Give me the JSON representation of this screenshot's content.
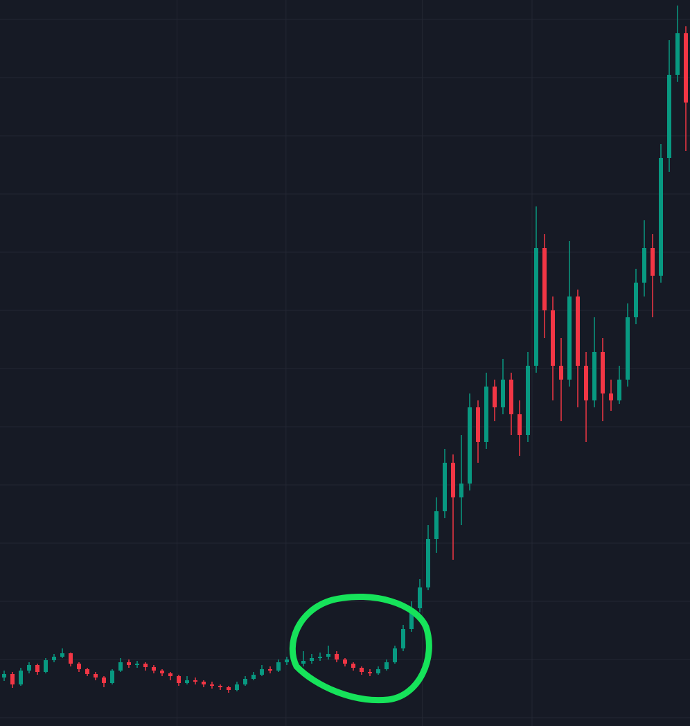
{
  "chart_data": {
    "type": "candlestick",
    "open": [
      70,
      75,
      60,
      80,
      88,
      78,
      95,
      100,
      105,
      90,
      82,
      75,
      70,
      62,
      80,
      92,
      88,
      90,
      85,
      80,
      76,
      72,
      62,
      66,
      64,
      60,
      58,
      56,
      52,
      60,
      68,
      74,
      82,
      80,
      92,
      96,
      90,
      94,
      98,
      100,
      104,
      96,
      90,
      84,
      78,
      76,
      82,
      92,
      112,
      140,
      170,
      200,
      270,
      310,
      380,
      330,
      350,
      460,
      410,
      490,
      460,
      500,
      450,
      420,
      520,
      690,
      600,
      520,
      500,
      620,
      520,
      470,
      540,
      480,
      470,
      500,
      590,
      640,
      690,
      650,
      820,
      940,
      1000
    ],
    "high": [
      80,
      78,
      84,
      92,
      90,
      98,
      104,
      112,
      106,
      92,
      84,
      78,
      72,
      82,
      98,
      96,
      94,
      92,
      88,
      82,
      78,
      74,
      72,
      70,
      66,
      64,
      60,
      58,
      64,
      72,
      78,
      88,
      86,
      96,
      100,
      98,
      108,
      104,
      106,
      116,
      108,
      98,
      92,
      86,
      82,
      86,
      96,
      116,
      146,
      180,
      212,
      290,
      330,
      400,
      392,
      420,
      480,
      470,
      510,
      500,
      530,
      510,
      470,
      540,
      750,
      710,
      620,
      560,
      700,
      630,
      540,
      590,
      560,
      500,
      520,
      610,
      660,
      730,
      710,
      840,
      990,
      1040,
      1010
    ],
    "low": [
      65,
      55,
      58,
      76,
      74,
      76,
      92,
      98,
      86,
      78,
      72,
      66,
      56,
      60,
      78,
      84,
      84,
      80,
      76,
      72,
      66,
      58,
      60,
      60,
      56,
      54,
      52,
      48,
      50,
      58,
      66,
      72,
      76,
      78,
      88,
      84,
      86,
      90,
      94,
      96,
      92,
      86,
      80,
      74,
      72,
      74,
      80,
      90,
      108,
      136,
      164,
      196,
      250,
      300,
      240,
      290,
      340,
      380,
      400,
      440,
      450,
      420,
      390,
      410,
      510,
      560,
      470,
      440,
      490,
      460,
      410,
      460,
      440,
      455,
      465,
      490,
      580,
      620,
      590,
      640,
      800,
      930,
      830
    ],
    "close": [
      75,
      60,
      80,
      88,
      78,
      95,
      100,
      105,
      90,
      82,
      75,
      70,
      62,
      80,
      92,
      88,
      90,
      85,
      80,
      76,
      72,
      62,
      66,
      64,
      60,
      58,
      56,
      52,
      60,
      68,
      74,
      82,
      80,
      92,
      96,
      90,
      94,
      98,
      100,
      104,
      96,
      90,
      84,
      78,
      76,
      82,
      92,
      112,
      140,
      170,
      200,
      270,
      310,
      380,
      330,
      350,
      460,
      410,
      490,
      460,
      500,
      450,
      420,
      520,
      690,
      600,
      520,
      500,
      620,
      520,
      470,
      540,
      480,
      470,
      500,
      590,
      640,
      690,
      650,
      820,
      940,
      1000,
      900
    ],
    "up_color": "#089981",
    "down_color": "#f23645",
    "ylim": [
      0,
      1048
    ],
    "yticks": [
      12,
      96,
      180,
      264,
      348,
      432,
      516,
      600,
      684,
      768,
      852,
      936,
      1020
    ],
    "xlim": [
      -0.5,
      82.5
    ],
    "xticks": [
      20.8,
      33.9,
      50.3,
      63.5
    ],
    "grid": true
  }
}
